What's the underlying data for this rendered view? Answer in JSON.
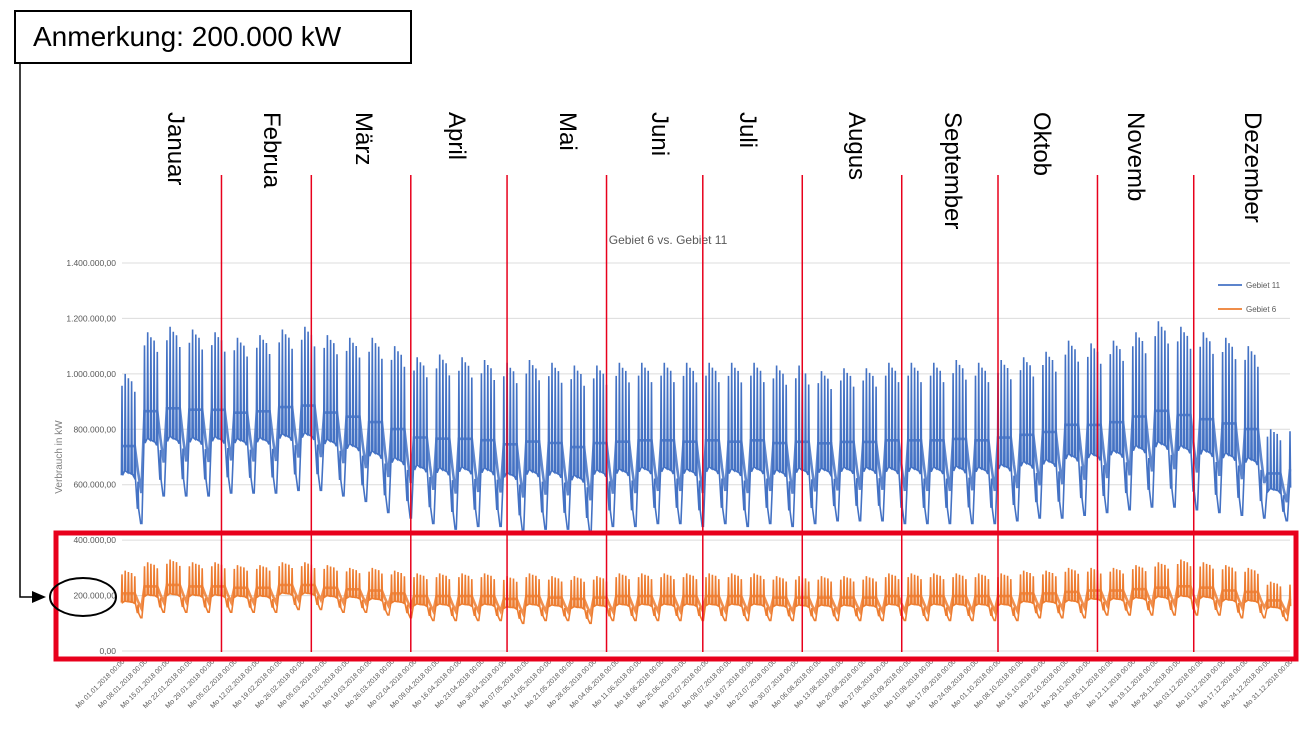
{
  "annotation": {
    "text": "Anmerkung: 200.000 kW"
  },
  "months": [
    "Januar",
    "Februa",
    "März",
    "April",
    "Mai",
    "Juni",
    "Juli",
    "Augus",
    "September",
    "Oktob",
    "Novemb",
    "Dezember"
  ],
  "chart_data": {
    "type": "line",
    "title": "Gebiet 6 vs. Gebiet 11",
    "xlabel": "",
    "ylabel": "Verbrauch in kW",
    "ylim": [
      0,
      1400000
    ],
    "yticks": [
      "0,00",
      "200.000,00",
      "400.000,00",
      "600.000,00",
      "800.000,00",
      "1.000.000,00",
      "1.200.000,00",
      "1.400.000,00"
    ],
    "ytick_values": [
      0,
      200000,
      400000,
      600000,
      800000,
      1000000,
      1200000,
      1400000
    ],
    "x_start": "2018-01-01",
    "x_end": "2018-12-31",
    "x_tick_labels": [
      "Mo 01.01.2018 00:00",
      "Mo 08.01.2018 00:00",
      "Mo 15.01.2018 00:00",
      "Mo 22.01.2018 00:00",
      "Mo 29.01.2018 00:00",
      "Mo 05.02.2018 00:00",
      "Mo 12.02.2018 00:00",
      "Mo 19.02.2018 00:00",
      "Mo 26.02.2018 00:00",
      "Mo 05.03.2018 00:00",
      "Mo 12.03.2018 00:00",
      "Mo 19.03.2018 00:00",
      "Mo 26.03.2018 00:00",
      "Mo 02.04.2018 00:00",
      "Mo 09.04.2018 00:00",
      "Mo 16.04.2018 00:00",
      "Mo 23.04.2018 00:00",
      "Mo 30.04.2018 00:00",
      "Mo 07.05.2018 00:00",
      "Mo 14.05.2018 00:00",
      "Mo 21.05.2018 00:00",
      "Mo 28.05.2018 00:00",
      "Mo 04.06.2018 00:00",
      "Mo 11.06.2018 00:00",
      "Mo 18.06.2018 00:00",
      "Mo 25.06.2018 00:00",
      "Mo 02.07.2018 00:00",
      "Mo 09.07.2018 00:00",
      "Mo 16.07.2018 00:00",
      "Mo 23.07.2018 00:00",
      "Mo 30.07.2018 00:00",
      "Mo 06.08.2018 00:00",
      "Mo 13.08.2018 00:00",
      "Mo 20.08.2018 00:00",
      "Mo 27.08.2018 00:00",
      "Mo 03.09.2018 00:00",
      "Mo 10.09.2018 00:00",
      "Mo 17.09.2018 00:00",
      "Mo 24.09.2018 00:00",
      "Mo 01.10.2018 00:00",
      "Mo 08.10.2018 00:00",
      "Mo 15.10.2018 00:00",
      "Mo 22.10.2018 00:00",
      "Mo 29.10.2018 00:00",
      "Mo 05.11.2018 00:00",
      "Mo 12.11.2018 00:00",
      "Mo 19.11.2018 00:00",
      "Mo 26.11.2018 00:00",
      "Mo 03.12.2018 00:00",
      "Mo 10.12.2018 00:00",
      "Mo 17.12.2018 00:00",
      "Mo 24.12.2018 00:00",
      "Mo 31.12.2018 00:00"
    ],
    "legend_position": "top-right",
    "grid": true,
    "series": [
      {
        "name": "Gebiet 11",
        "color": "#4472c4",
        "weekly_peak": [
          1000000,
          1150000,
          1170000,
          1160000,
          1150000,
          1130000,
          1140000,
          1160000,
          1170000,
          1140000,
          1130000,
          1130000,
          1100000,
          1060000,
          1070000,
          1060000,
          1050000,
          1040000,
          1050000,
          1040000,
          1030000,
          1030000,
          1040000,
          1040000,
          1040000,
          1040000,
          1040000,
          1040000,
          1040000,
          1030000,
          1030000,
          1010000,
          1020000,
          1020000,
          1040000,
          1040000,
          1040000,
          1050000,
          1040000,
          1050000,
          1060000,
          1080000,
          1120000,
          1110000,
          1120000,
          1150000,
          1190000,
          1170000,
          1150000,
          1130000,
          1100000,
          800000,
          820000
        ],
        "weekly_low": [
          460000,
          560000,
          560000,
          560000,
          570000,
          570000,
          570000,
          580000,
          580000,
          560000,
          540000,
          500000,
          480000,
          460000,
          440000,
          450000,
          450000,
          430000,
          440000,
          440000,
          420000,
          450000,
          450000,
          460000,
          460000,
          450000,
          460000,
          450000,
          460000,
          450000,
          460000,
          470000,
          470000,
          470000,
          460000,
          460000,
          460000,
          460000,
          460000,
          470000,
          480000,
          480000,
          490000,
          500000,
          510000,
          520000,
          520000,
          510000,
          500000,
          490000,
          480000,
          470000,
          480000
        ]
      },
      {
        "name": "Gebiet 6",
        "color": "#ed7d31",
        "weekly_peak": [
          290000,
          320000,
          330000,
          320000,
          320000,
          310000,
          310000,
          320000,
          320000,
          310000,
          300000,
          300000,
          290000,
          280000,
          280000,
          280000,
          280000,
          270000,
          280000,
          270000,
          270000,
          270000,
          280000,
          280000,
          280000,
          280000,
          280000,
          280000,
          280000,
          270000,
          270000,
          270000,
          270000,
          270000,
          280000,
          280000,
          280000,
          280000,
          280000,
          280000,
          290000,
          290000,
          300000,
          300000,
          300000,
          310000,
          320000,
          330000,
          320000,
          310000,
          300000,
          250000,
          250000
        ],
        "weekly_low": [
          120000,
          140000,
          140000,
          140000,
          140000,
          140000,
          140000,
          150000,
          150000,
          140000,
          140000,
          130000,
          120000,
          110000,
          110000,
          110000,
          110000,
          100000,
          110000,
          110000,
          100000,
          110000,
          110000,
          110000,
          110000,
          110000,
          110000,
          110000,
          110000,
          110000,
          110000,
          110000,
          110000,
          110000,
          110000,
          110000,
          110000,
          110000,
          110000,
          110000,
          120000,
          120000,
          120000,
          130000,
          130000,
          130000,
          130000,
          130000,
          130000,
          120000,
          120000,
          110000,
          120000
        ]
      }
    ]
  }
}
